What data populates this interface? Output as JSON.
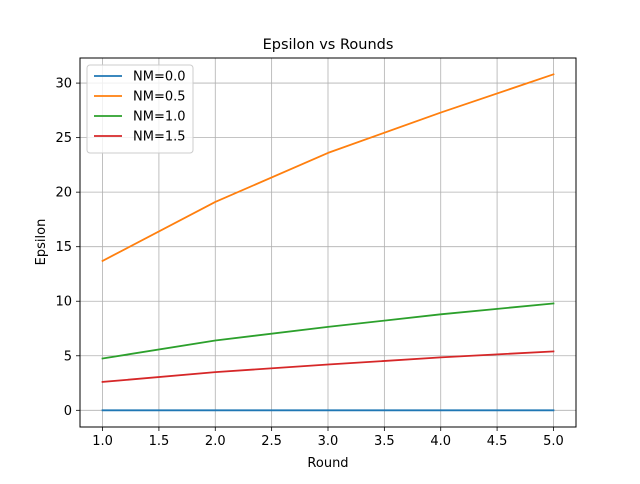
{
  "chart_data": {
    "type": "line",
    "title": "Epsilon vs Rounds",
    "xlabel": "Round",
    "ylabel": "Epsilon",
    "xlim": [
      0.8,
      5.2
    ],
    "ylim": [
      -1.53,
      32.3
    ],
    "xticks": [
      1.0,
      1.5,
      2.0,
      2.5,
      3.0,
      3.5,
      4.0,
      4.5,
      5.0
    ],
    "xtick_labels": [
      "1.0",
      "1.5",
      "2.0",
      "2.5",
      "3.0",
      "3.5",
      "4.0",
      "4.5",
      "5.0"
    ],
    "yticks": [
      0,
      5,
      10,
      15,
      20,
      25,
      30
    ],
    "ytick_labels": [
      "0",
      "5",
      "10",
      "15",
      "20",
      "25",
      "30"
    ],
    "grid": true,
    "legend_position": "top-left",
    "x": [
      1,
      2,
      3,
      4,
      5
    ],
    "series": [
      {
        "name": "NM=0.0",
        "color": "#1f77b4",
        "values": [
          0,
          0,
          0,
          0,
          0
        ]
      },
      {
        "name": "NM=0.5",
        "color": "#ff7f0e",
        "values": [
          13.7,
          19.1,
          23.6,
          27.3,
          30.8
        ]
      },
      {
        "name": "NM=1.0",
        "color": "#2ca02c",
        "values": [
          4.75,
          6.4,
          7.65,
          8.8,
          9.8
        ]
      },
      {
        "name": "NM=1.5",
        "color": "#d62728",
        "values": [
          2.6,
          3.5,
          4.2,
          4.85,
          5.4
        ]
      }
    ]
  }
}
